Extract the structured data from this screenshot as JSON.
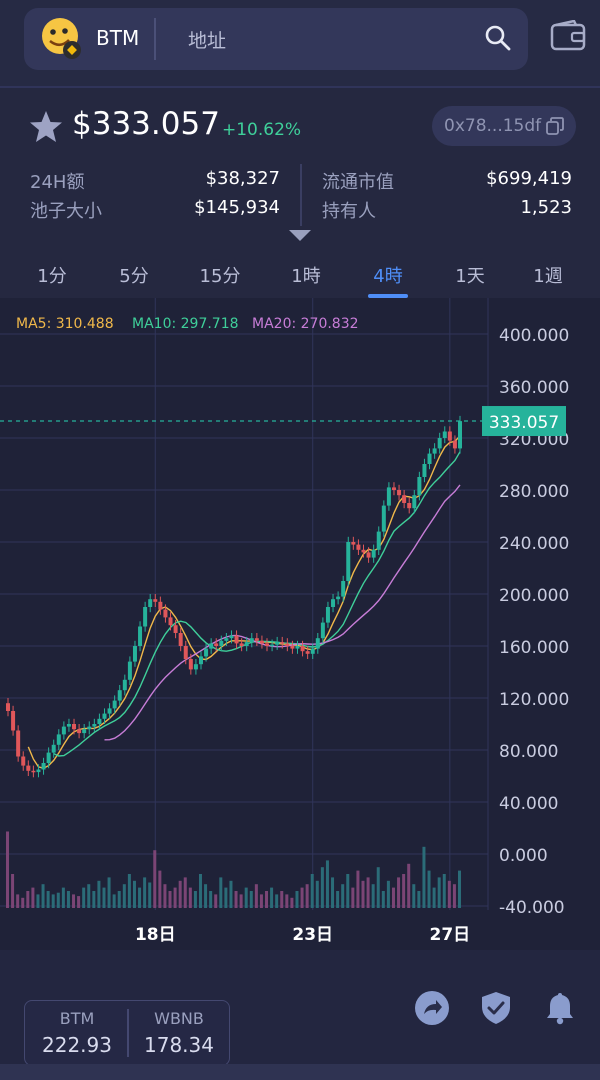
{
  "header": {
    "token": "BTM",
    "address_placeholder": "地址",
    "icons": [
      "binance-chip-icon",
      "search-icon",
      "wallet-icon"
    ]
  },
  "summary": {
    "price": "$333.057",
    "change": "+10.62%",
    "contract": "0x78...15df",
    "stats": [
      {
        "label": "24H额",
        "value": "$38,327"
      },
      {
        "label": "流通市值",
        "value": "$699,419"
      },
      {
        "label": "池子大小",
        "value": "$145,934"
      },
      {
        "label": "持有人",
        "value": "1,523"
      }
    ]
  },
  "tabs": [
    "1分",
    "5分",
    "15分",
    "1時",
    "4時",
    "1天",
    "1週"
  ],
  "active_tab": "4時",
  "chart_data": {
    "type": "candlestick",
    "ma": [
      {
        "name": "MA5",
        "label": "MA5: 310.488",
        "color": "#f0b84a"
      },
      {
        "name": "MA10",
        "label": "MA10: 297.718",
        "color": "#3fcf9a"
      },
      {
        "name": "MA20",
        "label": "MA20: 270.832",
        "color": "#c77dd7"
      }
    ],
    "y_ticks": [
      "400.000",
      "360.000",
      "320.000",
      "280.000",
      "240.000",
      "200.000",
      "160.000",
      "120.000",
      "80.000",
      "40.000",
      "0.000",
      "-40.000"
    ],
    "y_tick_values": [
      400,
      360,
      320,
      280,
      240,
      200,
      160,
      120,
      80,
      40,
      0,
      -40
    ],
    "ylim": [
      -40,
      400
    ],
    "x_ticks": [
      "18日",
      "23日",
      "27日"
    ],
    "x_tick_index": [
      29,
      60,
      87
    ],
    "current_price": "333.057",
    "current_value": 333.057,
    "colors": {
      "up": "#26b39b",
      "down": "#e0575a",
      "vol_up": "#2b6c78",
      "vol_down": "#7b4575",
      "grid": "#30345a",
      "price_line": "#26b39b"
    },
    "closes": [
      110,
      95,
      75,
      68,
      64,
      63,
      65,
      70,
      78,
      84,
      92,
      98,
      100,
      96,
      93,
      96,
      98,
      100,
      104,
      108,
      112,
      118,
      126,
      134,
      148,
      160,
      175,
      190,
      196,
      194,
      188,
      182,
      176,
      170,
      160,
      150,
      142,
      146,
      152,
      158,
      162,
      160,
      164,
      166,
      168,
      162,
      160,
      163,
      166,
      164,
      162,
      160,
      161,
      163,
      162,
      160,
      158,
      160,
      156,
      154,
      158,
      166,
      178,
      190,
      196,
      198,
      210,
      240,
      238,
      234,
      232,
      228,
      234,
      248,
      268,
      282,
      280,
      276,
      270,
      266,
      276,
      290,
      300,
      308,
      312,
      320,
      325,
      318,
      312,
      333
    ],
    "volumes": [
      45,
      20,
      8,
      6,
      10,
      12,
      8,
      14,
      10,
      8,
      9,
      12,
      10,
      8,
      7,
      12,
      14,
      10,
      16,
      12,
      18,
      8,
      10,
      14,
      20,
      16,
      12,
      18,
      15,
      34,
      22,
      14,
      10,
      12,
      16,
      18,
      12,
      10,
      20,
      14,
      10,
      8,
      18,
      12,
      16,
      10,
      8,
      12,
      10,
      14,
      8,
      10,
      12,
      8,
      10,
      8,
      6,
      10,
      12,
      14,
      20,
      16,
      24,
      28,
      18,
      10,
      14,
      20,
      12,
      22,
      16,
      18,
      14,
      24,
      10,
      16,
      12,
      18,
      20,
      26,
      14,
      10,
      36,
      22,
      12,
      18,
      20,
      16,
      14,
      22
    ]
  },
  "balances": [
    {
      "name": "BTM",
      "value": "222.93"
    },
    {
      "name": "WBNB",
      "value": "178.34"
    }
  ],
  "actions": [
    "share-icon",
    "shield-icon",
    "bell-icon"
  ]
}
